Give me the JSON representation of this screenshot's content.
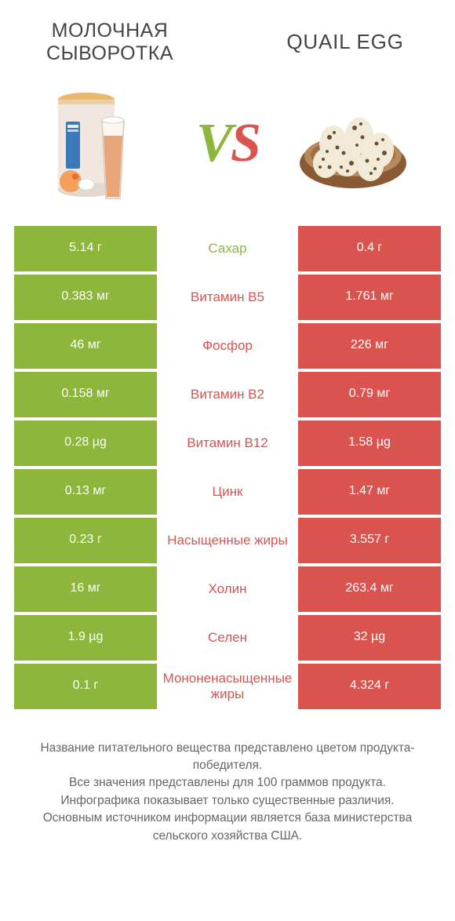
{
  "titles": {
    "left": "МОЛОЧНАЯ СЫВОРОТКА",
    "right": "QUAIL EGG",
    "left_fontsize": 25,
    "right_fontsize": 26
  },
  "vs": {
    "text": "VS",
    "color_v": "#8cb63c",
    "color_s": "#d9534f"
  },
  "colors": {
    "left_win": "#8cb63c",
    "right_win": "#d9534f",
    "mid_bg": "#ffffff",
    "row_gap_color": "#ffffff"
  },
  "table": {
    "rows": [
      {
        "left": "5.14 г",
        "mid": "Сахар",
        "right": "0.4 г",
        "winner": "left"
      },
      {
        "left": "0.383 мг",
        "mid": "Витамин B5",
        "right": "1.761 мг",
        "winner": "right"
      },
      {
        "left": "46 мг",
        "mid": "Фосфор",
        "right": "226 мг",
        "winner": "right"
      },
      {
        "left": "0.158 мг",
        "mid": "Витамин B2",
        "right": "0.79 мг",
        "winner": "right"
      },
      {
        "left": "0.28 µg",
        "mid": "Витамин B12",
        "right": "1.58 µg",
        "winner": "right"
      },
      {
        "left": "0.13 мг",
        "mid": "Цинк",
        "right": "1.47 мг",
        "winner": "right"
      },
      {
        "left": "0.23 г",
        "mid": "Насыщенные жиры",
        "right": "3.557 г",
        "winner": "right"
      },
      {
        "left": "16 мг",
        "mid": "Холин",
        "right": "263.4 мг",
        "winner": "right"
      },
      {
        "left": "1.9 µg",
        "mid": "Селен",
        "right": "32 µg",
        "winner": "right"
      },
      {
        "left": "0.1 г",
        "mid": "Мононенасыщенные жиры",
        "right": "4.324 г",
        "winner": "right"
      }
    ]
  },
  "footer": {
    "line1": "Название питательного вещества представлено цветом продукта-победителя.",
    "line2": "Все значения представлены для 100 граммов продукта.",
    "line3": "Инфографика показывает только существенные различия.",
    "line4": "Основным источником информации является база министерства сельского хозяйства США."
  },
  "images": {
    "whey": {
      "can_body": "#f0e8e0",
      "can_lid": "#e8b870",
      "label_blue": "#3a7ab8",
      "glass_liquid": "#e8a57a",
      "peach": "#f5a05a"
    },
    "quail": {
      "bowl_outer": "#8a5a35",
      "bowl_inner": "#b8895a",
      "egg_base": "#f2ead8",
      "egg_spot": "#6b5030"
    }
  }
}
